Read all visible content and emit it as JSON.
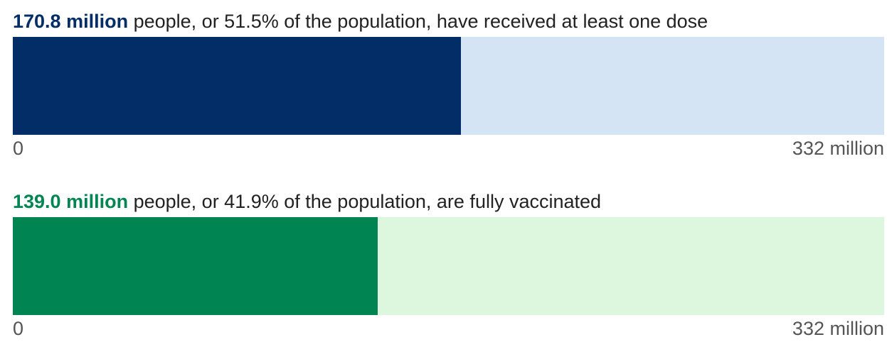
{
  "chart_data": {
    "type": "bar",
    "orientation": "horizontal",
    "bars": [
      {
        "value_label": "170.8 million",
        "description": "people, or 51.5% of the population, have received at least one dose",
        "value": 170.8,
        "total": 332,
        "fraction": 0.515,
        "fill_color": "#022d66",
        "track_color": "#d4e4f5",
        "label_color": "#022d66",
        "axis_min_label": "0",
        "axis_max_label": "332 million"
      },
      {
        "value_label": "139.0 million",
        "description": "people, or 41.9% of the population, are fully vaccinated",
        "value": 139.0,
        "total": 332,
        "fraction": 0.419,
        "fill_color": "#008552",
        "track_color": "#ddf7df",
        "label_color": "#008552",
        "axis_min_label": "0",
        "axis_max_label": "332 million"
      }
    ]
  }
}
